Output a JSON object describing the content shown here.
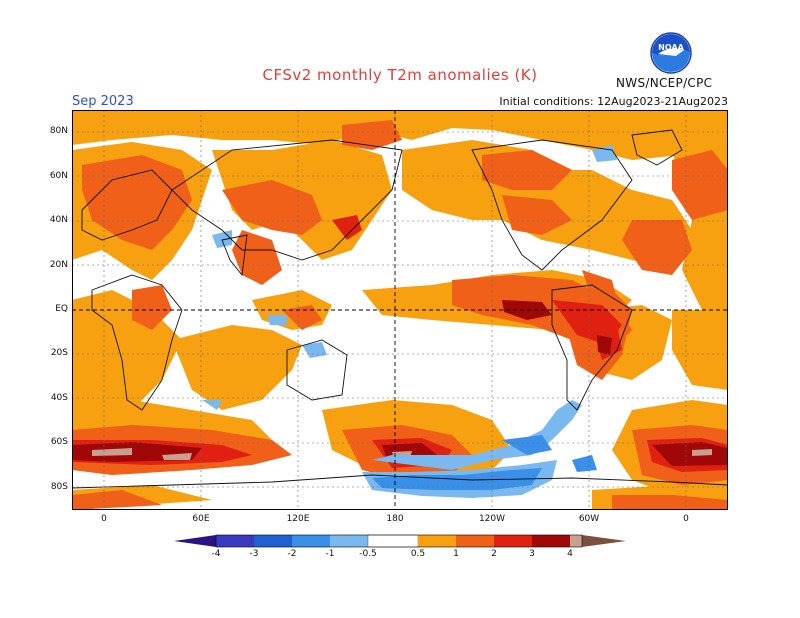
{
  "header": {
    "title": "CFSv2 monthly T2m anomalies (K)",
    "month": "Sep 2023",
    "initial_conditions": "Initial conditions: 12Aug2023-21Aug2023",
    "agency": "NWS/NCEP/CPC",
    "logo_text": "NOAA"
  },
  "map": {
    "lat_ticks": [
      "80N",
      "60N",
      "40N",
      "20N",
      "EQ",
      "20S",
      "40S",
      "60S",
      "80S"
    ],
    "lon_ticks": [
      "0",
      "60E",
      "120E",
      "180",
      "120W",
      "60W",
      "0"
    ]
  },
  "legend": {
    "labels": [
      "-4",
      "-3",
      "-2",
      "-1",
      "-0.5",
      "0.5",
      "1",
      "2",
      "3",
      "4"
    ],
    "colors": {
      "below_-4": "#2a1485",
      "-4_-3": "#3a3ac0",
      "-3_-2": "#2060d0",
      "-2_-1": "#3a90e8",
      "-1_-0.5": "#7ab8f0",
      "neutral": "#ffffff",
      "0.5_1": "#f7a010",
      "1_2": "#f06018",
      "2_3": "#e02010",
      "3_4": "#a00808",
      "above_4": "#c8a090",
      "extreme": "#7a5040"
    }
  }
}
